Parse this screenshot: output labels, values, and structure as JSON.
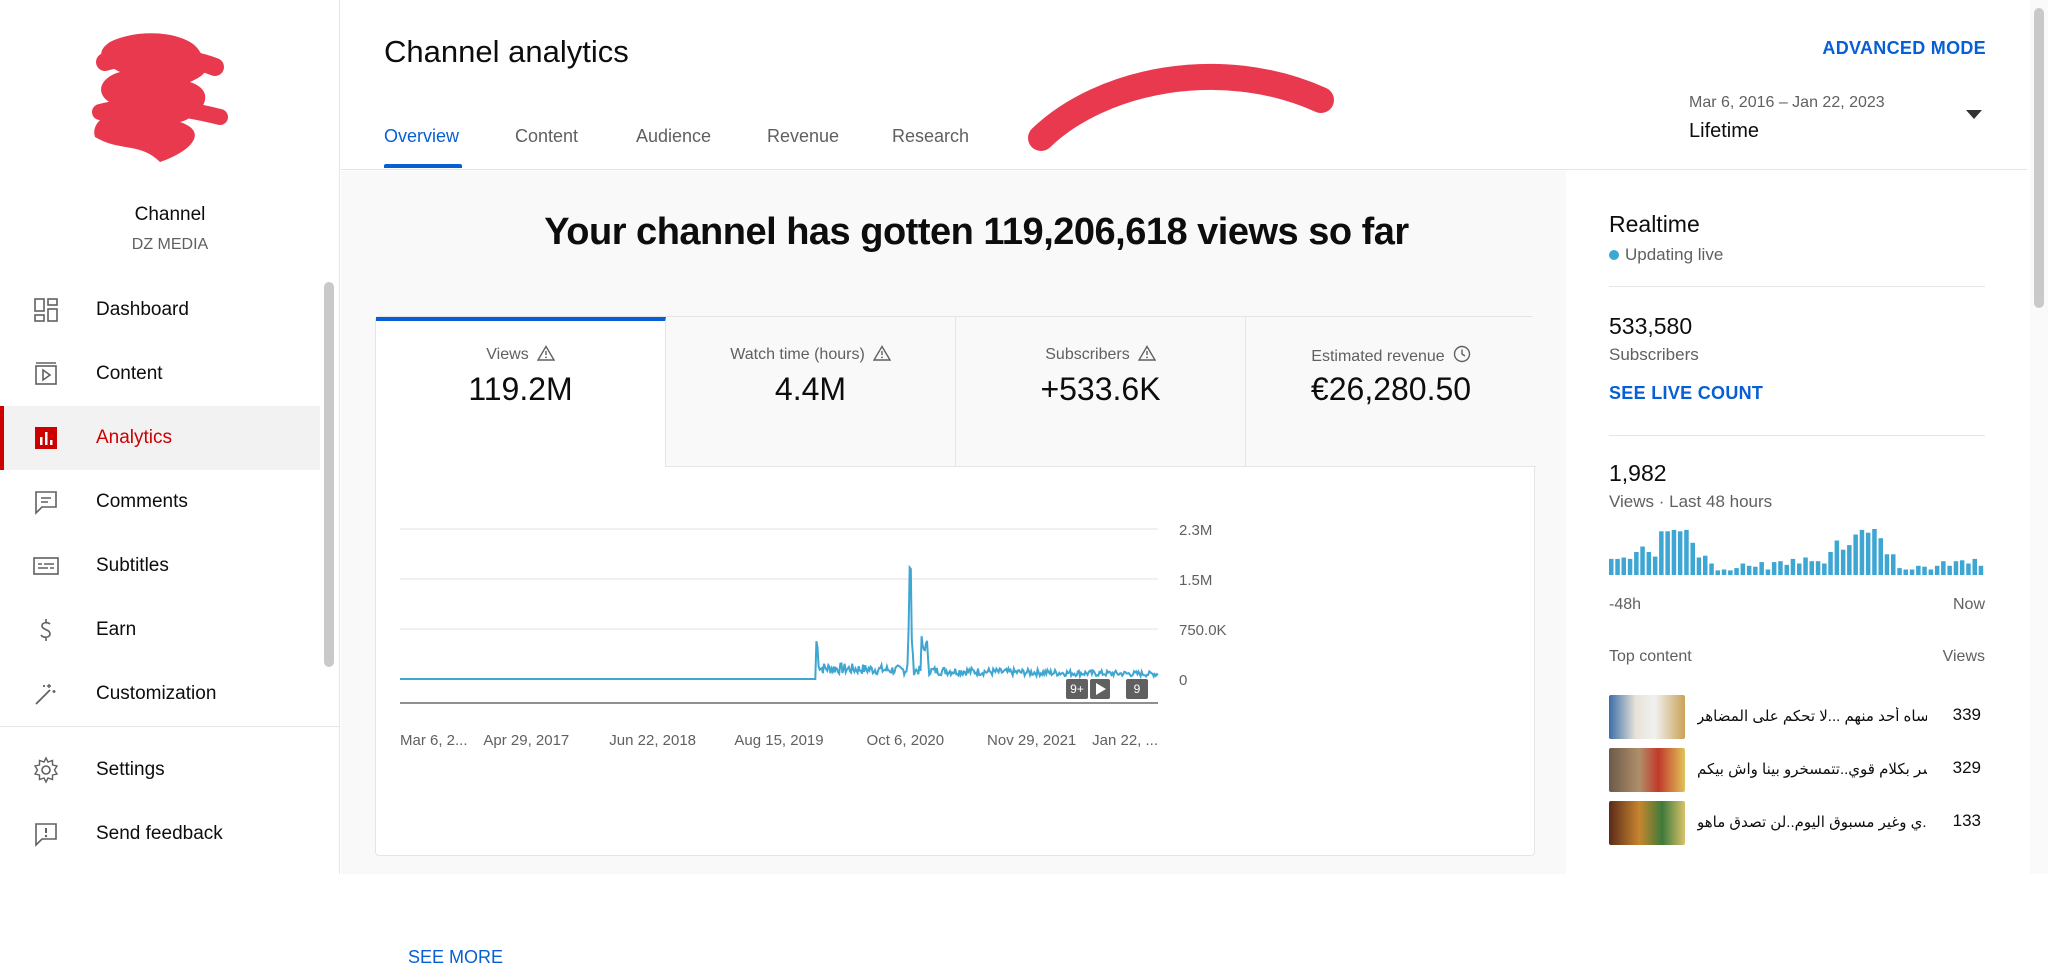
{
  "sidebar": {
    "channel_label": "Channel",
    "channel_name": "DZ MEDIA",
    "items": [
      {
        "label": "Dashboard",
        "icon": "dashboard-icon"
      },
      {
        "label": "Content",
        "icon": "content-icon"
      },
      {
        "label": "Analytics",
        "icon": "analytics-icon",
        "active": true
      },
      {
        "label": "Comments",
        "icon": "comments-icon"
      },
      {
        "label": "Subtitles",
        "icon": "subtitles-icon"
      },
      {
        "label": "Earn",
        "icon": "earn-icon"
      },
      {
        "label": "Customization",
        "icon": "customization-icon"
      },
      {
        "label": "Settings",
        "icon": "settings-icon"
      },
      {
        "label": "Send feedback",
        "icon": "feedback-icon"
      }
    ]
  },
  "header": {
    "title": "Channel analytics",
    "advanced_mode": "ADVANCED MODE",
    "tabs": [
      "Overview",
      "Content",
      "Audience",
      "Revenue",
      "Research"
    ],
    "active_tab": "Overview",
    "date_range": "Mar 6, 2016 – Jan 22, 2023",
    "date_period": "Lifetime"
  },
  "main": {
    "headline": "Your channel has gotten 119,206,618 views so far",
    "metrics": [
      {
        "label": "Views",
        "value": "119.2M",
        "icon": "warning-icon"
      },
      {
        "label": "Watch time (hours)",
        "value": "4.4M",
        "icon": "warning-icon"
      },
      {
        "label": "Subscribers",
        "value": "+533.6K",
        "icon": "warning-icon"
      },
      {
        "label": "Estimated revenue",
        "value": "€26,280.50",
        "icon": "clock-icon"
      }
    ],
    "see_more": "SEE MORE",
    "marker_badges": [
      "9+",
      "9"
    ]
  },
  "chart_data": {
    "type": "line",
    "series": [
      {
        "name": "Views",
        "color": "#3ea6d2"
      }
    ],
    "x_ticks": [
      "Mar 6, 2...",
      "Apr 29, 2017",
      "Jun 22, 2018",
      "Aug 15, 2019",
      "Oct 6, 2020",
      "Nov 29, 2021",
      "Jan 22, ..."
    ],
    "y_ticks": [
      "2.3M",
      "1.5M",
      "750.0K",
      "0"
    ],
    "ylim": [
      0,
      2250000
    ],
    "grid": true
  },
  "realtime": {
    "title": "Realtime",
    "status": "Updating live",
    "subscribers": "533,580",
    "subscribers_label": "Subscribers",
    "live_count": "SEE LIVE COUNT",
    "views": "1,982",
    "views_label": "Views · Last 48 hours",
    "bars": [
      0.35,
      0.35,
      0.38,
      0.35,
      0.5,
      0.62,
      0.5,
      0.4,
      0.95,
      0.95,
      0.98,
      0.95,
      0.98,
      0.7,
      0.38,
      0.42,
      0.25,
      0.1,
      0.12,
      0.1,
      0.15,
      0.25,
      0.2,
      0.18,
      0.28,
      0.12,
      0.28,
      0.3,
      0.22,
      0.35,
      0.25,
      0.38,
      0.3,
      0.3,
      0.25,
      0.5,
      0.75,
      0.55,
      0.65,
      0.88,
      0.98,
      0.92,
      1.0,
      0.8,
      0.45,
      0.45,
      0.15,
      0.12,
      0.12,
      0.2,
      0.18,
      0.12,
      0.2,
      0.3,
      0.2,
      0.3,
      0.32,
      0.25,
      0.35,
      0.2
    ],
    "bar_color": "#3ea6d2",
    "axis_left": "-48h",
    "axis_right": "Now",
    "top_content_label": "Top content",
    "top_views_label": "Views",
    "top_content": [
      {
        "title": "نساه أحد منهم ...لا تحكم على المضاهر...",
        "views": "339"
      },
      {
        "title": "شر بكلام قوي..تتمسخرو بينا واش بيكم...",
        "views": "329"
      },
      {
        "title": "ي وغير مسبوق اليوم..لن تصدق ماهو...",
        "views": "133"
      }
    ]
  }
}
